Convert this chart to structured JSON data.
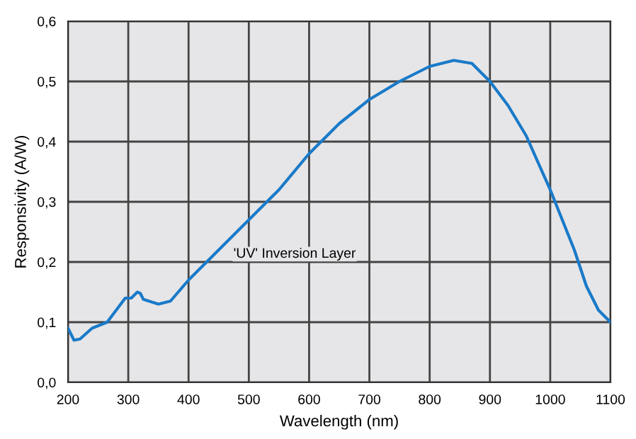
{
  "chart_data": {
    "type": "line",
    "xlabel": "Wavelength (nm)",
    "ylabel": "Responsivity (A/W)",
    "annotations": [
      "'UV' Inversion Layer"
    ],
    "xlim": [
      200,
      1100
    ],
    "xticks": [
      200,
      300,
      400,
      500,
      600,
      700,
      800,
      900,
      1000,
      1100
    ],
    "ylim": [
      0,
      0.6
    ],
    "yticks": [
      {
        "value": 0,
        "label": "0,0"
      },
      {
        "value": 0.1,
        "label": "0,1"
      },
      {
        "value": 0.2,
        "label": "0,2"
      },
      {
        "value": 0.3,
        "label": "0,3"
      },
      {
        "value": 0.4,
        "label": "0,4"
      },
      {
        "value": 0.5,
        "label": "0,5"
      },
      {
        "value": 0.6,
        "label": "0,6"
      }
    ],
    "grid": true,
    "marker": "none",
    "line_style": "solid",
    "series": [
      {
        "color": "#1a7ac8",
        "x": [
          200,
          210,
          220,
          240,
          265,
          280,
          295,
          305,
          315,
          320,
          325,
          350,
          370,
          400,
          450,
          500,
          550,
          600,
          620,
          650,
          700,
          750,
          800,
          840,
          870,
          900,
          930,
          960,
          1000,
          1040,
          1060,
          1080,
          1100
        ],
        "values": [
          0.09,
          0.07,
          0.072,
          0.09,
          0.1,
          0.12,
          0.14,
          0.14,
          0.15,
          0.148,
          0.138,
          0.13,
          0.135,
          0.17,
          0.22,
          0.27,
          0.32,
          0.38,
          0.4,
          0.43,
          0.47,
          0.5,
          0.525,
          0.535,
          0.53,
          0.5,
          0.46,
          0.41,
          0.32,
          0.22,
          0.16,
          0.12,
          0.1
        ]
      }
    ]
  }
}
